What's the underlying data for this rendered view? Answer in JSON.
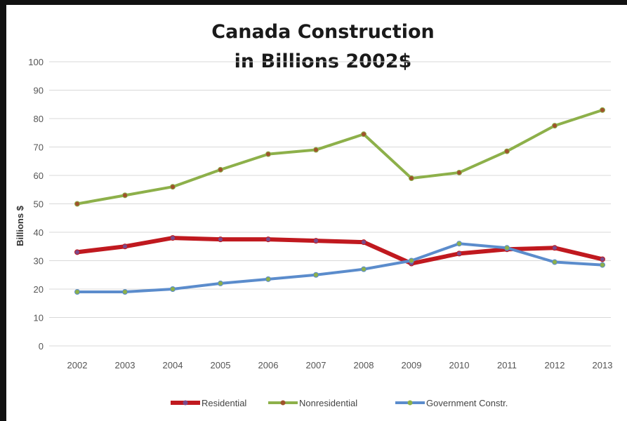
{
  "chart_data": {
    "type": "line",
    "title_line1": "Canada Construction",
    "title_line2": "in Billions 2002$",
    "ylabel": "Billions $",
    "xlabel": "",
    "categories": [
      "2002",
      "2003",
      "2004",
      "2005",
      "2006",
      "2007",
      "2008",
      "2009",
      "2010",
      "2011",
      "2012",
      "2013"
    ],
    "ylim": [
      0,
      100
    ],
    "yticks": [
      0,
      10,
      20,
      30,
      40,
      50,
      60,
      70,
      80,
      90,
      100
    ],
    "grid": true,
    "legend_position": "bottom",
    "series": [
      {
        "name": "Residential",
        "color": "#c0191f",
        "marker_color": "#7a4a8a",
        "values": [
          33,
          35,
          38,
          37.5,
          37.5,
          37,
          36.5,
          29,
          32.5,
          34,
          34.5,
          30.5
        ]
      },
      {
        "name": "Nonresidential",
        "color": "#8db04a",
        "marker_color": "#a0522d",
        "values": [
          50,
          53,
          56,
          62,
          67.5,
          69,
          74.5,
          59,
          61,
          68.5,
          77.5,
          83
        ]
      },
      {
        "name": "Government Constr.",
        "color": "#5b8ccc",
        "marker_color": "#8db04a",
        "values": [
          19,
          19,
          20,
          22,
          23.5,
          25,
          27,
          30,
          36,
          34.5,
          29.5,
          28.5
        ]
      }
    ]
  }
}
